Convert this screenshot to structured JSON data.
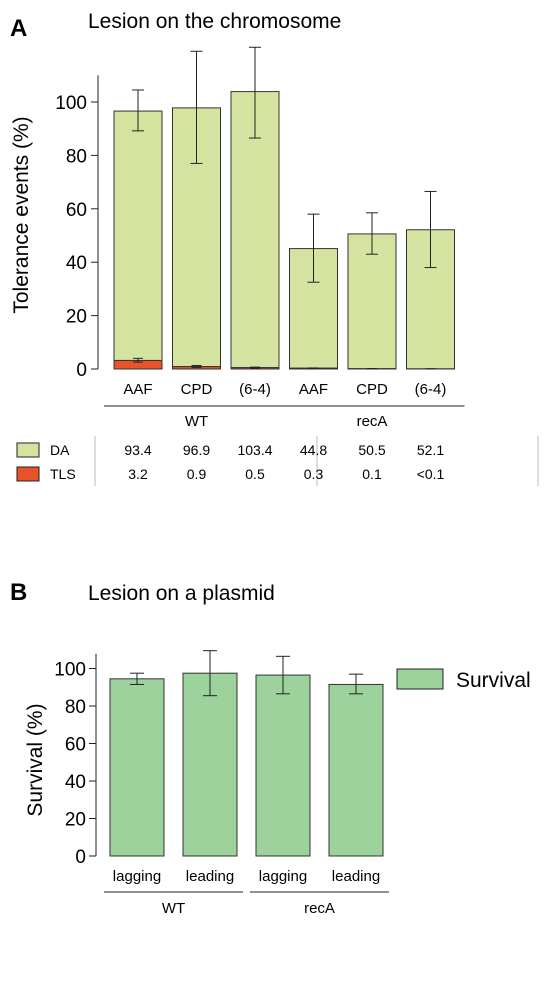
{
  "panelA": {
    "label": "A",
    "title": "Lesion on the chromosome",
    "groups": [
      "WT",
      "recA"
    ],
    "table_rows": [
      {
        "name": "DA",
        "color": "#d4e4a0",
        "values": [
          "93.4",
          "96.9",
          "103.4",
          "44.8",
          "50.5",
          "52.1"
        ]
      },
      {
        "name": "TLS",
        "color": "#e8532a",
        "values": [
          "3.2",
          "0.9",
          "0.5",
          "0.3",
          "0.1",
          "<0.1"
        ]
      }
    ]
  },
  "panelB": {
    "label": "B",
    "title": "Lesion on a plasmid",
    "groups": [
      "WT",
      "recA"
    ],
    "legend": "Survival"
  },
  "chart_data": [
    {
      "type": "bar",
      "stacked": true,
      "title": "Lesion on the chromosome",
      "ylabel": "Tolerance events (%)",
      "xlabel": "",
      "ylim": [
        0,
        110
      ],
      "yticks": [
        0,
        20,
        40,
        60,
        80,
        100
      ],
      "categories": [
        "AAF",
        "CPD",
        "(6-4)",
        "AAF",
        "CPD",
        "(6-4)"
      ],
      "groups": [
        {
          "name": "WT",
          "from": 0,
          "to": 2
        },
        {
          "name": "recA",
          "from": 3,
          "to": 5
        }
      ],
      "series": [
        {
          "name": "TLS",
          "color": "#e8532a",
          "values": [
            3.2,
            0.9,
            0.5,
            0.3,
            0.1,
            0.05
          ]
        },
        {
          "name": "DA",
          "color": "#d4e4a0",
          "values": [
            93.4,
            96.9,
            103.4,
            44.8,
            50.5,
            52.1
          ]
        }
      ],
      "error_bars": [
        {
          "low": 89.2,
          "high": 104.5
        },
        {
          "low": 77,
          "high": 119
        },
        {
          "low": 86.5,
          "high": 120.5
        },
        {
          "low": 32.5,
          "high": 58
        },
        {
          "low": 43,
          "high": 58.5
        },
        {
          "low": 38,
          "high": 66.5
        }
      ],
      "tls_error_bars": [
        {
          "low": 2.6,
          "high": 4.0
        },
        {
          "low": 0.6,
          "high": 1.3
        },
        {
          "low": 0.3,
          "high": 0.7
        },
        {
          "low": 0.2,
          "high": 0.4
        },
        {
          "low": 0.05,
          "high": 0.15
        },
        {
          "low": 0.0,
          "high": 0.1
        }
      ],
      "grid": false
    },
    {
      "type": "bar",
      "title": "Lesion on a plasmid",
      "ylabel": "Survival (%)",
      "xlabel": "",
      "ylim": [
        0,
        110
      ],
      "yticks": [
        0,
        20,
        40,
        60,
        80,
        100
      ],
      "categories": [
        "lagging",
        "leading",
        "lagging",
        "leading"
      ],
      "groups": [
        {
          "name": "WT",
          "from": 0,
          "to": 1
        },
        {
          "name": "recA",
          "from": 2,
          "to": 3
        }
      ],
      "series": [
        {
          "name": "Survival",
          "color": "#9dd29c",
          "values": [
            94.5,
            97.5,
            96.5,
            91.5
          ]
        }
      ],
      "error_bars": [
        {
          "low": 91.5,
          "high": 97.5
        },
        {
          "low": 85.5,
          "high": 109.5
        },
        {
          "low": 86.5,
          "high": 106.5
        },
        {
          "low": 86.5,
          "high": 97
        }
      ],
      "legend": "right",
      "grid": false
    }
  ]
}
